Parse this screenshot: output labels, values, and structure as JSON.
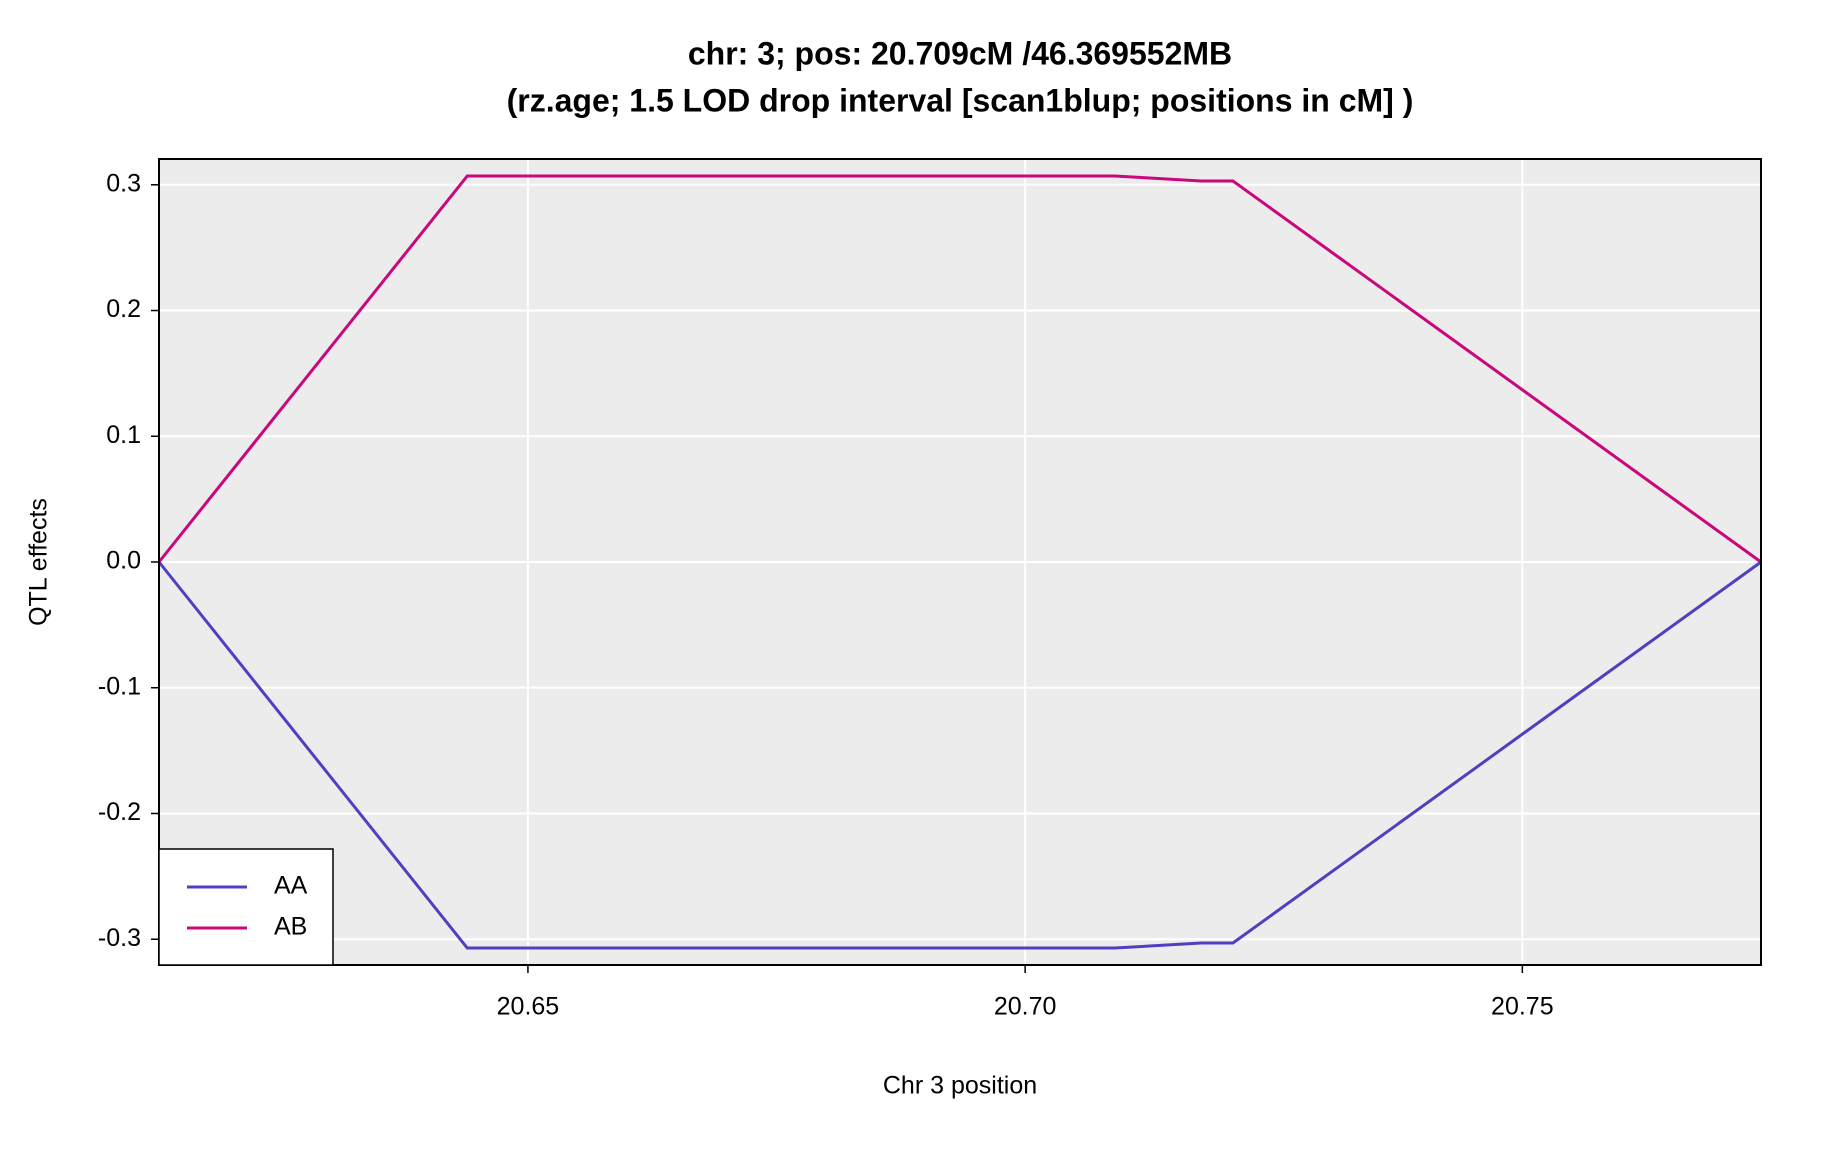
{
  "chart_data": {
    "type": "line",
    "title": "chr: 3; pos: 20.709cM /46.369552MB",
    "subtitle": "(rz.age; 1.5 LOD drop interval [scan1blup; positions in cM] )",
    "x_label": "Chr 3 position",
    "y_label": "QTL effects",
    "x": [
      20.6129,
      20.6439,
      20.709,
      20.7177,
      20.7209,
      20.774
    ],
    "series": [
      {
        "name": "AA",
        "color": "#5040c0",
        "values": [
          0,
          -0.307,
          -0.307,
          -0.303,
          -0.303,
          0
        ]
      },
      {
        "name": "AB",
        "color": "#c8087c",
        "values": [
          0,
          0.307,
          0.307,
          0.303,
          0.303,
          0
        ]
      }
    ],
    "xlim": [
      20.6129,
      20.774
    ],
    "ylim": [
      -0.3205,
      0.3205
    ],
    "xticks": [
      20.65,
      {
        "value": 20.7,
        "label": "20.70"
      },
      20.75
    ],
    "yticks": [
      -0.3,
      -0.2,
      -0.1,
      {
        "value": 0,
        "label": "0.0"
      },
      0.1,
      0.2,
      0.3
    ],
    "grid": true,
    "legend_position": "bottom-left"
  }
}
